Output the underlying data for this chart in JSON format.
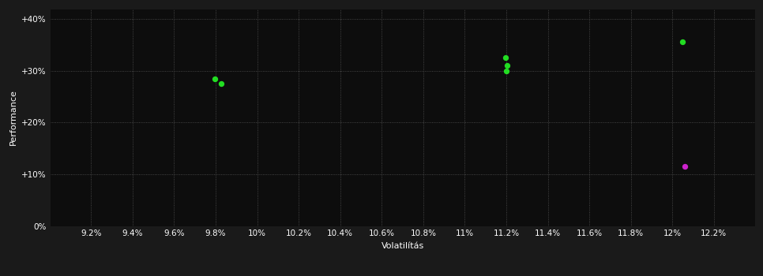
{
  "background_color": "#1a1a1a",
  "plot_bg_color": "#0d0d0d",
  "grid_color": "#555555",
  "text_color": "#ffffff",
  "xlabel": "Volatilítás",
  "ylabel": "Performance",
  "xlim": [
    9.0,
    12.4
  ],
  "ylim": [
    0,
    42
  ],
  "xticks": [
    9.2,
    9.4,
    9.6,
    9.8,
    10.0,
    10.2,
    10.4,
    10.6,
    10.8,
    11.0,
    11.2,
    11.4,
    11.6,
    11.8,
    12.0,
    12.2
  ],
  "yticks": [
    0,
    10,
    20,
    30,
    40
  ],
  "ytick_labels": [
    "0%",
    "+10%",
    "+20%",
    "+30%",
    "+40%"
  ],
  "xtick_labels": [
    "9.2%",
    "9.4%",
    "9.6%",
    "9.8%",
    "10%",
    "10.2%",
    "10.4%",
    "10.6%",
    "10.8%",
    "11%",
    "11.2%",
    "11.4%",
    "11.6%",
    "11.8%",
    "12%",
    "12.2%"
  ],
  "points_green": [
    [
      9.795,
      28.4
    ],
    [
      9.825,
      27.5
    ],
    [
      11.195,
      32.5
    ],
    [
      11.205,
      31.0
    ],
    [
      11.2,
      30.0
    ],
    [
      12.05,
      35.5
    ]
  ],
  "points_magenta": [
    [
      12.06,
      11.5
    ]
  ],
  "green_color": "#22dd22",
  "magenta_color": "#cc22cc",
  "marker_size": 28,
  "figsize": [
    9.66,
    3.5
  ],
  "dpi": 100
}
